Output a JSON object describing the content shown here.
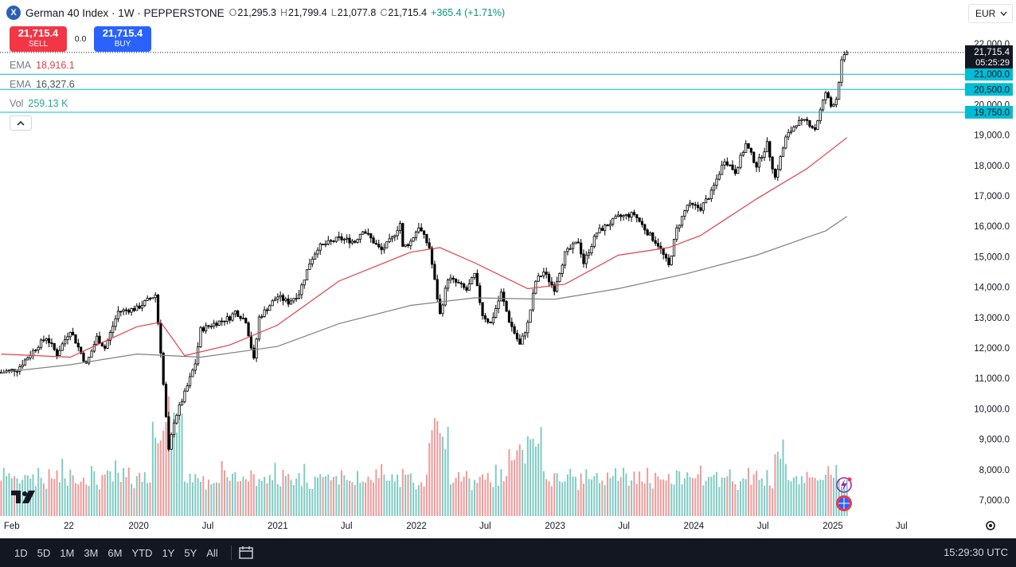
{
  "header": {
    "symbol_logo": "X",
    "title": "German 40 Index · 1W · PEPPERSTONE",
    "ohlc": {
      "o_label": "O",
      "o": "21,295.3",
      "h_label": "H",
      "h": "21,799.4",
      "l_label": "L",
      "l": "21,077.8",
      "c_label": "C",
      "c": "21,715.4",
      "change": "+365.4 (+1.71%)"
    }
  },
  "trade": {
    "sell_price": "21,715.4",
    "sell_label": "SELL",
    "spread": "0.0",
    "buy_price": "21,715.4",
    "buy_label": "BUY"
  },
  "indicators": [
    {
      "label": "EMA",
      "value": "18,916.1"
    },
    {
      "label": "EMA",
      "value": "16,327.6"
    },
    {
      "label": "Vol",
      "value": "259.13 K"
    }
  ],
  "currency": "EUR",
  "toolbar": {
    "ranges": [
      "1D",
      "5D",
      "1M",
      "3M",
      "6M",
      "YTD",
      "1Y",
      "5Y",
      "All"
    ],
    "clock": "15:29:30 UTC"
  },
  "colors": {
    "up": "#000000",
    "down": "#000000",
    "ema_fast": "#e0414a",
    "ema_slow": "#808080",
    "vol_up": "#80cbc4",
    "vol_down": "#ef9a9a",
    "level": "#00bcd4",
    "price_tag": "#131722"
  },
  "chart_data": {
    "type": "candlestick",
    "title": "German 40 Index · 1W · PEPPERSTONE",
    "ylim": [
      6600,
      22400
    ],
    "y_ticks": [
      7000,
      8000,
      9000,
      10000,
      11000,
      12000,
      13000,
      14000,
      15000,
      16000,
      17000,
      18000,
      19000,
      20000,
      21000,
      22000
    ],
    "y_tick_labels": [
      "7,000.0",
      "8,000.0",
      "9,000.0",
      "10,000.0",
      "11,000.0",
      "12,000.0",
      "13,000.0",
      "14,000.0",
      "15,000.0",
      "16,000.0",
      "17,000.0",
      "18,000.0",
      "19,000.0",
      "20,000.0",
      "21,000.0",
      "22,000.0"
    ],
    "x_tick_labels": [
      "Feb",
      "22",
      "2020",
      "Jul",
      "2021",
      "Jul",
      "2022",
      "Jul",
      "2023",
      "Jul",
      "2024",
      "Jul",
      "2025",
      "Jul"
    ],
    "x_tick_dates": [
      "2019-02-01",
      "2019-07-01",
      "2020-01-01",
      "2020-07-01",
      "2021-01-01",
      "2021-07-01",
      "2022-01-01",
      "2022-07-01",
      "2023-01-01",
      "2023-07-01",
      "2024-01-01",
      "2024-07-01",
      "2025-01-01",
      "2025-07-01"
    ],
    "price_path": [
      [
        "2019-01-04",
        11200
      ],
      [
        "2019-02-15",
        11300
      ],
      [
        "2019-04-12",
        12100
      ],
      [
        "2019-05-03",
        12350
      ],
      [
        "2019-05-31",
        11800
      ],
      [
        "2019-07-05",
        12600
      ],
      [
        "2019-08-16",
        11450
      ],
      [
        "2019-09-13",
        12350
      ],
      [
        "2019-10-04",
        12000
      ],
      [
        "2019-11-08",
        13200
      ],
      [
        "2019-12-27",
        13300
      ],
      [
        "2020-01-17",
        13500
      ],
      [
        "2020-02-14",
        13750
      ],
      [
        "2020-02-28",
        11900
      ],
      [
        "2020-03-20",
        8600
      ],
      [
        "2020-04-03",
        9600
      ],
      [
        "2020-05-01",
        10500
      ],
      [
        "2020-05-29",
        11500
      ],
      [
        "2020-06-12",
        12600
      ],
      [
        "2020-07-17",
        12800
      ],
      [
        "2020-08-28",
        13000
      ],
      [
        "2020-09-11",
        13200
      ],
      [
        "2020-10-09",
        12900
      ],
      [
        "2020-10-30",
        11600
      ],
      [
        "2020-11-13",
        13000
      ],
      [
        "2020-12-31",
        13700
      ],
      [
        "2021-01-29",
        13500
      ],
      [
        "2021-02-26",
        13800
      ],
      [
        "2021-03-26",
        14800
      ],
      [
        "2021-04-16",
        15300
      ],
      [
        "2021-06-11",
        15600
      ],
      [
        "2021-07-23",
        15500
      ],
      [
        "2021-08-13",
        15900
      ],
      [
        "2021-09-30",
        15200
      ],
      [
        "2021-10-29",
        15600
      ],
      [
        "2021-11-19",
        16100
      ],
      [
        "2021-11-26",
        15300
      ],
      [
        "2021-12-17",
        15500
      ],
      [
        "2022-01-07",
        16000
      ],
      [
        "2022-02-04",
        15300
      ],
      [
        "2022-03-04",
        13100
      ],
      [
        "2022-03-25",
        14300
      ],
      [
        "2022-04-22",
        14100
      ],
      [
        "2022-05-13",
        13900
      ],
      [
        "2022-06-03",
        14400
      ],
      [
        "2022-06-24",
        13100
      ],
      [
        "2022-07-15",
        12800
      ],
      [
        "2022-08-12",
        13800
      ],
      [
        "2022-09-02",
        12900
      ],
      [
        "2022-09-30",
        12100
      ],
      [
        "2022-10-21",
        12800
      ],
      [
        "2022-11-11",
        14200
      ],
      [
        "2022-12-02",
        14500
      ],
      [
        "2022-12-30",
        13950
      ],
      [
        "2023-01-27",
        15100
      ],
      [
        "2023-03-03",
        15500
      ],
      [
        "2023-03-17",
        14800
      ],
      [
        "2023-04-21",
        15800
      ],
      [
        "2023-06-16",
        16300
      ],
      [
        "2023-07-28",
        16400
      ],
      [
        "2023-09-01",
        15800
      ],
      [
        "2023-09-29",
        15400
      ],
      [
        "2023-10-27",
        14700
      ],
      [
        "2023-11-17",
        15900
      ],
      [
        "2023-12-15",
        16700
      ],
      [
        "2024-01-19",
        16600
      ],
      [
        "2024-02-16",
        17100
      ],
      [
        "2024-03-22",
        18200
      ],
      [
        "2024-04-19",
        17800
      ],
      [
        "2024-05-17",
        18700
      ],
      [
        "2024-06-14",
        18000
      ],
      [
        "2024-07-12",
        18700
      ],
      [
        "2024-08-02",
        17600
      ],
      [
        "2024-08-30",
        18900
      ],
      [
        "2024-09-27",
        19400
      ],
      [
        "2024-10-25",
        19450
      ],
      [
        "2024-11-15",
        19200
      ],
      [
        "2024-12-13",
        20400
      ],
      [
        "2024-12-27",
        19950
      ],
      [
        "2025-01-10",
        20200
      ],
      [
        "2025-01-24",
        21400
      ],
      [
        "2025-02-07",
        21715.4
      ]
    ],
    "ema_fast": [
      [
        "2019-01-04",
        11800
      ],
      [
        "2019-07-05",
        11700
      ],
      [
        "2019-12-27",
        12700
      ],
      [
        "2020-02-28",
        12850
      ],
      [
        "2020-05-01",
        11750
      ],
      [
        "2020-08-28",
        12100
      ],
      [
        "2020-12-31",
        12750
      ],
      [
        "2021-06-11",
        14200
      ],
      [
        "2021-12-17",
        15150
      ],
      [
        "2022-03-04",
        15300
      ],
      [
        "2022-06-03",
        14800
      ],
      [
        "2022-10-21",
        13950
      ],
      [
        "2023-01-27",
        14100
      ],
      [
        "2023-06-16",
        15050
      ],
      [
        "2023-10-27",
        15300
      ],
      [
        "2024-01-19",
        15700
      ],
      [
        "2024-06-14",
        16900
      ],
      [
        "2024-10-25",
        17900
      ],
      [
        "2025-02-07",
        18916.1
      ]
    ],
    "ema_slow": [
      [
        "2019-01-04",
        11200
      ],
      [
        "2019-07-05",
        11450
      ],
      [
        "2019-12-27",
        11800
      ],
      [
        "2020-06-12",
        11700
      ],
      [
        "2020-12-31",
        12050
      ],
      [
        "2021-06-11",
        12800
      ],
      [
        "2021-12-17",
        13400
      ],
      [
        "2022-06-03",
        13650
      ],
      [
        "2022-12-30",
        13600
      ],
      [
        "2023-06-16",
        13950
      ],
      [
        "2023-12-15",
        14450
      ],
      [
        "2024-06-14",
        15050
      ],
      [
        "2024-12-13",
        15850
      ],
      [
        "2025-02-07",
        16327.6
      ]
    ],
    "volume_profile": [
      [
        0.33,
        0.35,
        0.3,
        0.4,
        0.32,
        0.28,
        0.36,
        0.3,
        0.34,
        0.31,
        0.29,
        0.35,
        0.33,
        0.3,
        0.38,
        0.32,
        0.28,
        0.27,
        0.33,
        0.3
      ],
      "repeat"
    ],
    "levels": [
      {
        "value": 21000,
        "label": "21,000.0"
      },
      {
        "value": 20500,
        "label": "20,500.0"
      },
      {
        "value": 19750,
        "label": "19,750.0"
      }
    ],
    "last_price": "21,715.4",
    "countdown": "05:25:29"
  }
}
